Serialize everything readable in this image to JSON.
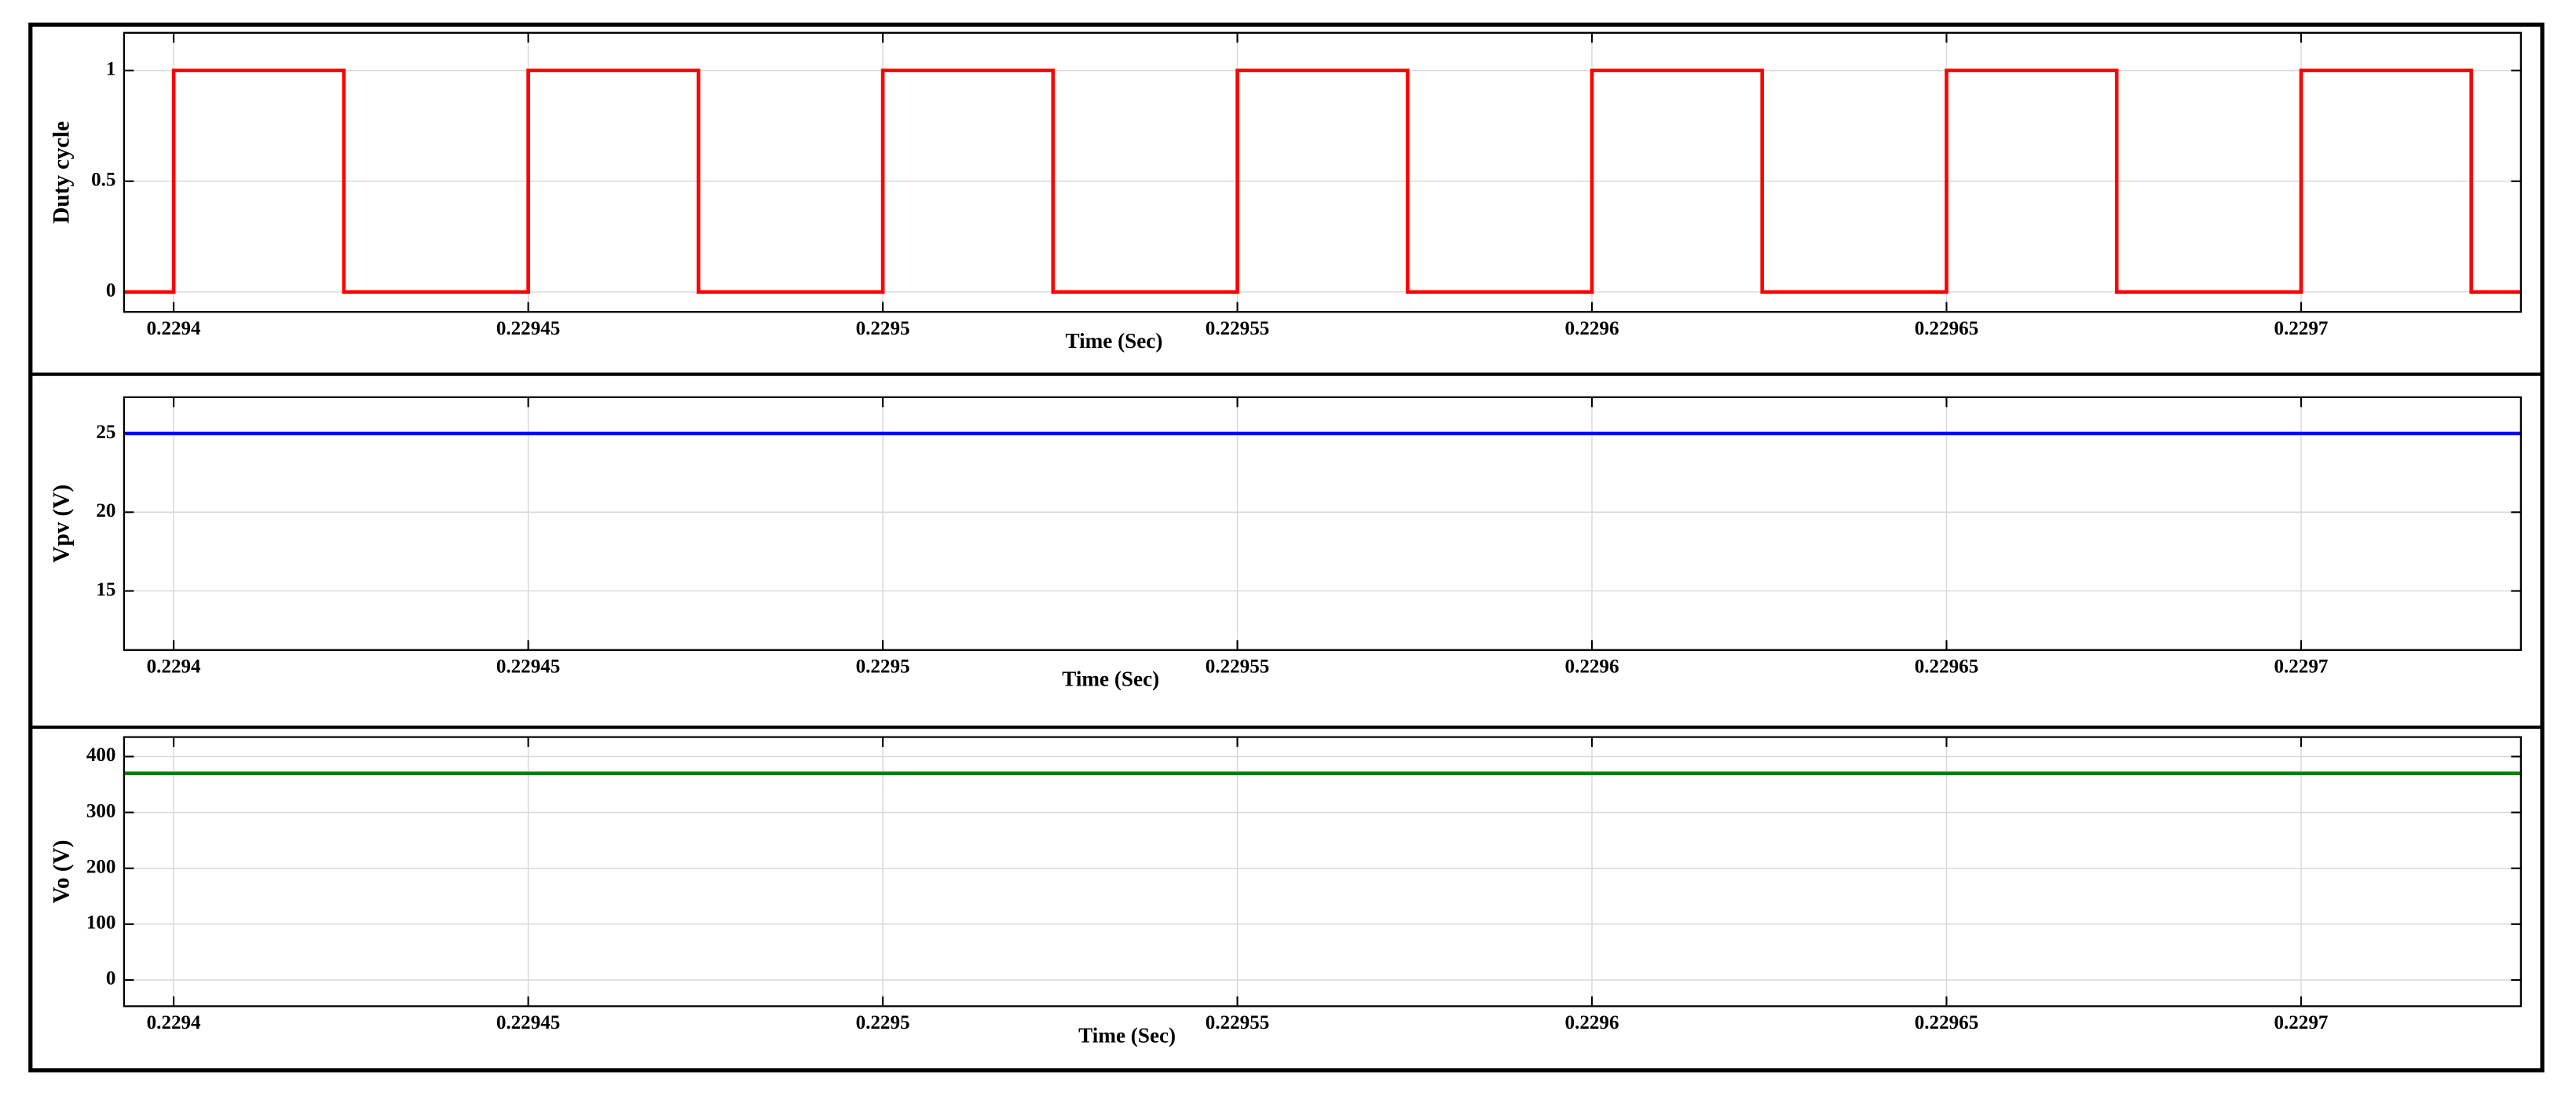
{
  "chart_data": [
    {
      "type": "line",
      "ylabel": "Duty cycle",
      "xlabel": "Time (Sec)",
      "color": "#ff0000",
      "grid": true,
      "x": [
        0.229393,
        0.2294,
        0.2294,
        0.229424,
        0.229424,
        0.22945,
        0.22945,
        0.229474,
        0.229474,
        0.2295,
        0.2295,
        0.229524,
        0.229524,
        0.22955,
        0.22955,
        0.229574,
        0.229574,
        0.2296,
        0.2296,
        0.229624,
        0.229624,
        0.22965,
        0.22965,
        0.229674,
        0.229674,
        0.2297,
        0.2297,
        0.229724,
        0.229724,
        0.229731
      ],
      "values": [
        0,
        0,
        1,
        1,
        0,
        0,
        1,
        1,
        0,
        0,
        1,
        1,
        0,
        0,
        1,
        1,
        0,
        0,
        1,
        1,
        0,
        0,
        1,
        1,
        0,
        0,
        1,
        1,
        0,
        0
      ],
      "xlim": [
        0.229393,
        0.229731
      ],
      "xticks": [
        0.2294,
        0.22945,
        0.2295,
        0.22955,
        0.2296,
        0.22965,
        0.2297
      ],
      "ylim": [
        -0.09,
        1.17
      ],
      "yticks": [
        0,
        0.5,
        1
      ]
    },
    {
      "type": "line",
      "ylabel": "Vpv (V)",
      "xlabel": "Time (Sec)",
      "color": "#0000ff",
      "grid": true,
      "x": [
        0.229393,
        0.229731
      ],
      "values": [
        25,
        25
      ],
      "xlim": [
        0.229393,
        0.229731
      ],
      "xticks": [
        0.2294,
        0.22945,
        0.2295,
        0.22955,
        0.2296,
        0.22965,
        0.2297
      ],
      "ylim": [
        11.25,
        27.3
      ],
      "yticks": [
        15,
        20,
        25
      ]
    },
    {
      "type": "line",
      "ylabel": "Vo (V)",
      "xlabel": "Time (Sec)",
      "color": "#008000",
      "grid": true,
      "x": [
        0.229393,
        0.229731
      ],
      "values": [
        370,
        370
      ],
      "xlim": [
        0.229393,
        0.229731
      ],
      "xticks": [
        0.2294,
        0.22945,
        0.2295,
        0.22955,
        0.2296,
        0.22965,
        0.2297
      ],
      "ylim": [
        -47,
        435
      ],
      "yticks": [
        0,
        100,
        200,
        300,
        400
      ]
    }
  ]
}
